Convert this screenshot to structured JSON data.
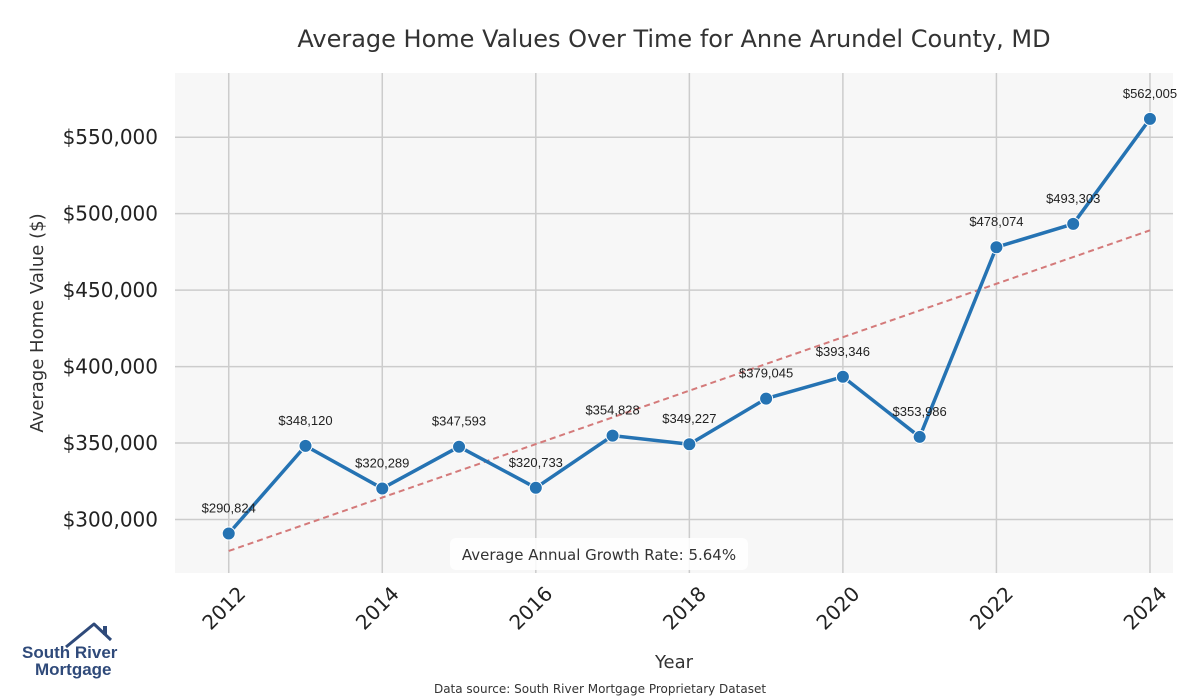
{
  "chart_data": {
    "type": "line",
    "title": "Average Home Values Over Time for Anne Arundel County, MD",
    "xlabel": "Year",
    "ylabel": "Average Home Value ($)",
    "x": [
      2012,
      2013,
      2014,
      2015,
      2016,
      2017,
      2018,
      2019,
      2020,
      2021,
      2022,
      2023,
      2024
    ],
    "series": [
      {
        "values": [
          290824,
          348120,
          320289,
          347593,
          320733,
          354828,
          349227,
          379045,
          393346,
          353986,
          478074,
          493303,
          562005
        ],
        "labels": [
          "$290,824",
          "$348,120",
          "$320,289",
          "$347,593",
          "$320,733",
          "$354,828",
          "$349,227",
          "$379,045",
          "$393,346",
          "$353,986",
          "$478,074",
          "$493,303",
          "$562,005"
        ],
        "color": "#2573b3"
      }
    ],
    "trendline": {
      "start": [
        2012,
        279400
      ],
      "end": [
        2024,
        489100
      ],
      "color": "#d47a7a",
      "style": "dashed"
    },
    "xticks": [
      2012,
      2014,
      2016,
      2018,
      2020,
      2022,
      2024
    ],
    "xtick_labels": [
      "2012",
      "2014",
      "2016",
      "2018",
      "2020",
      "2022",
      "2024"
    ],
    "yticks": [
      300000,
      350000,
      400000,
      450000,
      500000,
      550000
    ],
    "ytick_labels": [
      "$300,000",
      "$350,000",
      "$400,000",
      "$450,000",
      "$500,000",
      "$550,000"
    ],
    "xlim": [
      2011.3,
      2024.3
    ],
    "ylim": [
      265000,
      592000
    ],
    "grid": true,
    "background_color": "#f7f7f7",
    "annotation": "Average Annual Growth Rate: 5.64%"
  },
  "source_note": "Data source: South River Mortgage Proprietary Dataset",
  "logo": {
    "line1": "South River",
    "line2": "Mortgage",
    "color": "#2f4a7a"
  }
}
